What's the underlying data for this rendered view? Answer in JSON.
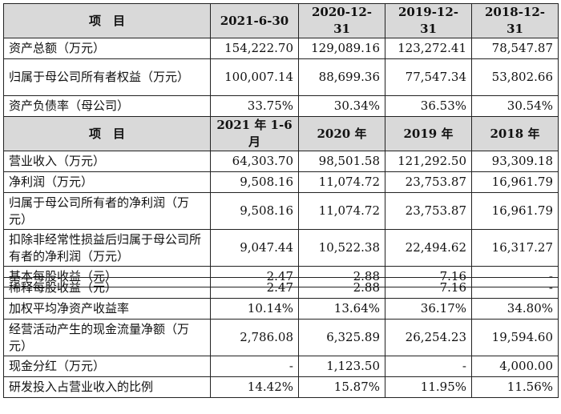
{
  "table_top": {
    "balance_header": [
      "项　目",
      "2021-6-30",
      "2020-12-31",
      "2019-12-31",
      "2018-12-31"
    ],
    "balance_rows": [
      {
        "label": "资产总额（万元）",
        "values": [
          "154,222.70",
          "129,089.16",
          "123,272.41",
          "78,547.87"
        ]
      },
      {
        "label": "归属于母公司所有者权益（万元）",
        "values": [
          "100,007.14",
          "88,699.36",
          "77,547.34",
          "53,802.66"
        ]
      },
      {
        "label": "资产负债率（母公司）",
        "values": [
          "33.75%",
          "30.34%",
          "36.53%",
          "30.54%"
        ]
      }
    ],
    "income_header": [
      "项　目",
      "2021 年 1-6 月",
      "2020 年",
      "2019 年",
      "2018 年"
    ],
    "income_rows": [
      {
        "label": "营业收入（万元）",
        "values": [
          "64,303.70",
          "98,501.58",
          "121,292.50",
          "93,309.18"
        ]
      },
      {
        "label": "净利润（万元）",
        "values": [
          "9,508.16",
          "11,074.72",
          "23,753.87",
          "16,961.79"
        ]
      },
      {
        "label": "归属于母公司所有者的净利润（万元）",
        "values": [
          "9,508.16",
          "11,074.72",
          "23,753.87",
          "16,961.79"
        ]
      },
      {
        "label": "扣除非经常性损益后归属于母公司所有者的净利润（万元）",
        "values": [
          "9,047.44",
          "10,522.38",
          "22,494.62",
          "16,317.27"
        ]
      },
      {
        "label": "基本每股收益（元）",
        "values": [
          "2.47",
          "2.88",
          "7.16",
          "-"
        ]
      }
    ]
  },
  "table_bottom": {
    "rows": [
      {
        "label": "稀释每股收益（元）",
        "values": [
          "2.47",
          "2.88",
          "7.16",
          "-"
        ]
      },
      {
        "label": "加权平均净资产收益率",
        "values": [
          "10.14%",
          "13.64%",
          "36.17%",
          "34.80%"
        ]
      },
      {
        "label": "经营活动产生的现金流量净额（万元）",
        "values": [
          "2,786.08",
          "6,325.89",
          "26,254.23",
          "19,594.60"
        ]
      },
      {
        "label": "现金分红（万元）",
        "values": [
          "-",
          "1,123.50",
          "-",
          "4,000.00"
        ]
      },
      {
        "label": "研发投入占营业收入的比例",
        "values": [
          "14.42%",
          "15.87%",
          "11.95%",
          "11.56%"
        ]
      }
    ]
  }
}
